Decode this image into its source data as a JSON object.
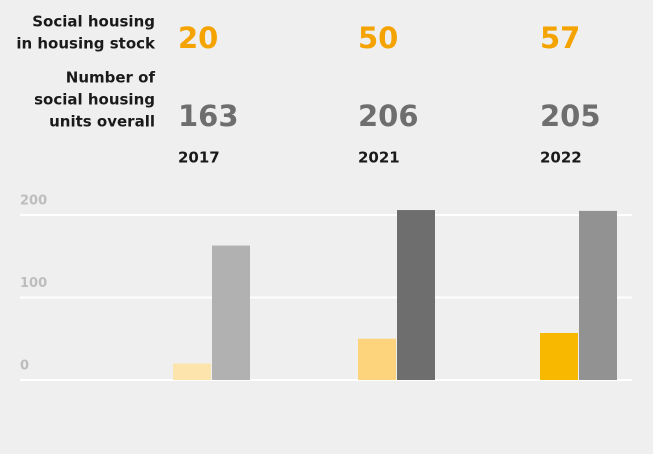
{
  "chart_data": {
    "type": "bar",
    "categories": [
      "2017",
      "2021",
      "2022"
    ],
    "series": [
      {
        "label": [
          "Social housing",
          "in housing stock"
        ],
        "values": [
          20,
          50,
          57
        ],
        "color": "#f5a300",
        "colors": [
          "#fde4ad",
          "#fdd47c",
          "#f9b800"
        ]
      },
      {
        "label": [
          "Number of",
          "social housing",
          "units overall"
        ],
        "values": [
          163,
          206,
          205
        ],
        "color": "#6e6e6e",
        "colors": [
          "#b1b1b1",
          "#6e6e6e",
          "#929292"
        ]
      }
    ],
    "ylim": [
      0,
      200
    ],
    "yticks": [
      0,
      100,
      200
    ],
    "grid": true
  }
}
